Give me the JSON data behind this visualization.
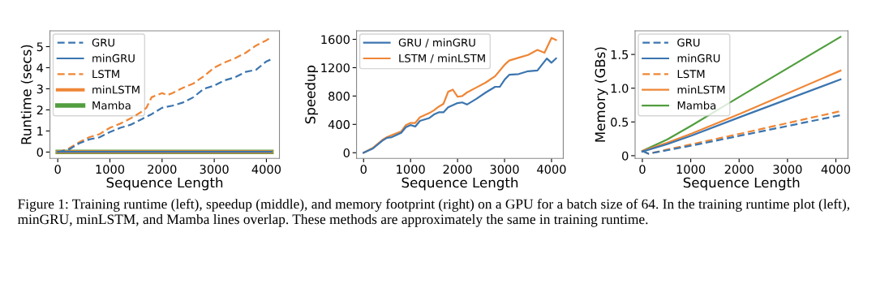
{
  "chart_data": [
    {
      "type": "line",
      "xlabel": "Sequence Length",
      "ylabel": "Runtime (secs)",
      "xlim": [
        -150,
        4250
      ],
      "ylim": [
        -0.3,
        5.75
      ],
      "xticks": [
        0,
        1000,
        2000,
        3000,
        4000
      ],
      "yticks": [
        0,
        1,
        2,
        3,
        4,
        5
      ],
      "legend": "top left",
      "grid": false,
      "annotations": [
        "Figure 1: Training runtime (left), speedup (middle), and memory footprint (right) on a GPU for a batch size of 64. In the training runtime plot (left), minGRU, minLSTM, and Mamba lines overlap. These methods are approximately the same in training runtime."
      ],
      "series": [
        {
          "name": "GRU",
          "color": "#3b75af",
          "line_style": "dashed",
          "x": [
            0,
            200,
            400,
            600,
            800,
            1000,
            1200,
            1400,
            1600,
            1800,
            2000,
            2200,
            2400,
            2600,
            2800,
            3000,
            3200,
            3400,
            3600,
            3800,
            4000,
            4096
          ],
          "values": [
            0,
            0.1,
            0.4,
            0.6,
            0.7,
            0.95,
            1.15,
            1.3,
            1.55,
            1.8,
            2.1,
            2.2,
            2.35,
            2.6,
            3.0,
            3.15,
            3.4,
            3.55,
            3.8,
            3.9,
            4.3,
            4.4
          ]
        },
        {
          "name": "minGRU",
          "color": "#3b75af",
          "line_style": "solid",
          "x": [
            0,
            4096
          ],
          "values": [
            0.01,
            0.01
          ]
        },
        {
          "name": "LSTM",
          "color": "#ef8636",
          "line_style": "dashed",
          "x": [
            0,
            200,
            400,
            600,
            800,
            1000,
            1200,
            1400,
            1600,
            1700,
            1800,
            2000,
            2100,
            2200,
            2400,
            2600,
            2800,
            3000,
            3200,
            3400,
            3600,
            3800,
            4000,
            4096
          ],
          "values": [
            0,
            0.15,
            0.45,
            0.7,
            0.85,
            1.15,
            1.35,
            1.6,
            1.9,
            2.1,
            2.6,
            2.8,
            2.7,
            2.8,
            3.05,
            3.25,
            3.6,
            4.0,
            4.25,
            4.45,
            4.7,
            5.05,
            5.3,
            5.45
          ]
        },
        {
          "name": "minLSTM",
          "color": "#ef8636",
          "line_style": "solid",
          "x": [
            0,
            4096
          ],
          "values": [
            0.01,
            0.01
          ]
        },
        {
          "name": "Mamba",
          "color": "#519e3e",
          "line_style": "solid",
          "x": [
            0,
            4096
          ],
          "values": [
            0.01,
            0.01
          ]
        }
      ]
    },
    {
      "type": "line",
      "xlabel": "Sequence Length",
      "ylabel": "Speedup",
      "xlim": [
        -150,
        4250
      ],
      "ylim": [
        -80,
        1720
      ],
      "xticks": [
        0,
        1000,
        2000,
        3000,
        4000
      ],
      "yticks": [
        0,
        400,
        800,
        1200,
        1600
      ],
      "legend": "top left",
      "grid": false,
      "series": [
        {
          "name": "GRU / minGRU",
          "color": "#3b75af",
          "line_style": "solid",
          "x": [
            0,
            200,
            400,
            500,
            600,
            800,
            900,
            1000,
            1100,
            1200,
            1400,
            1500,
            1600,
            1700,
            1800,
            2000,
            2100,
            2200,
            2400,
            2600,
            2800,
            2900,
            3000,
            3100,
            3300,
            3500,
            3700,
            3900,
            4000,
            4096
          ],
          "values": [
            0,
            60,
            170,
            210,
            220,
            280,
            360,
            390,
            370,
            450,
            490,
            540,
            570,
            570,
            640,
            700,
            710,
            680,
            760,
            850,
            930,
            930,
            1030,
            1100,
            1110,
            1150,
            1160,
            1330,
            1270,
            1330
          ]
        },
        {
          "name": "LSTM / minLSTM",
          "color": "#ef8636",
          "line_style": "solid",
          "x": [
            0,
            200,
            400,
            500,
            600,
            800,
            900,
            1000,
            1100,
            1200,
            1400,
            1500,
            1600,
            1700,
            1800,
            1900,
            2000,
            2100,
            2200,
            2400,
            2600,
            2800,
            3000,
            3100,
            3300,
            3500,
            3700,
            3850,
            4000,
            4096
          ],
          "values": [
            0,
            70,
            180,
            220,
            250,
            300,
            390,
            420,
            420,
            500,
            560,
            600,
            650,
            690,
            860,
            890,
            790,
            800,
            850,
            920,
            990,
            1080,
            1240,
            1300,
            1340,
            1380,
            1450,
            1410,
            1620,
            1590
          ]
        }
      ]
    },
    {
      "type": "line",
      "xlabel": "Sequence Length",
      "ylabel": "Memory (GBs)",
      "xlim": [
        -150,
        4250
      ],
      "ylim": [
        -0.04,
        1.85
      ],
      "xticks": [
        0,
        1000,
        2000,
        3000,
        4000
      ],
      "yticks": [
        0,
        0.5,
        {
          "value": 1.0,
          "label": "1.0"
        },
        1.5
      ],
      "legend": "top left",
      "grid": false,
      "series": [
        {
          "name": "GRU",
          "color": "#3b75af",
          "line_style": "dashed",
          "x": [
            0,
            128,
            512,
            1024,
            2048,
            4096
          ],
          "values": [
            0.07,
            0.03,
            0.08,
            0.15,
            0.3,
            0.6
          ]
        },
        {
          "name": "minGRU",
          "color": "#3b75af",
          "line_style": "solid",
          "x": [
            0,
            512,
            1024,
            2048,
            4096
          ],
          "values": [
            0.06,
            0.17,
            0.3,
            0.58,
            1.13
          ]
        },
        {
          "name": "LSTM",
          "color": "#ef8636",
          "line_style": "dashed",
          "x": [
            0,
            128,
            512,
            1024,
            2048,
            4096
          ],
          "values": [
            0.07,
            0.03,
            0.09,
            0.17,
            0.33,
            0.66
          ]
        },
        {
          "name": "minLSTM",
          "color": "#ef8636",
          "line_style": "solid",
          "x": [
            0,
            512,
            1024,
            2048,
            4096
          ],
          "values": [
            0.07,
            0.19,
            0.33,
            0.63,
            1.26
          ]
        },
        {
          "name": "Mamba",
          "color": "#519e3e",
          "line_style": "solid",
          "x": [
            0,
            512,
            1024,
            2048,
            4096
          ],
          "values": [
            0.07,
            0.24,
            0.45,
            0.89,
            1.76
          ]
        }
      ]
    }
  ]
}
